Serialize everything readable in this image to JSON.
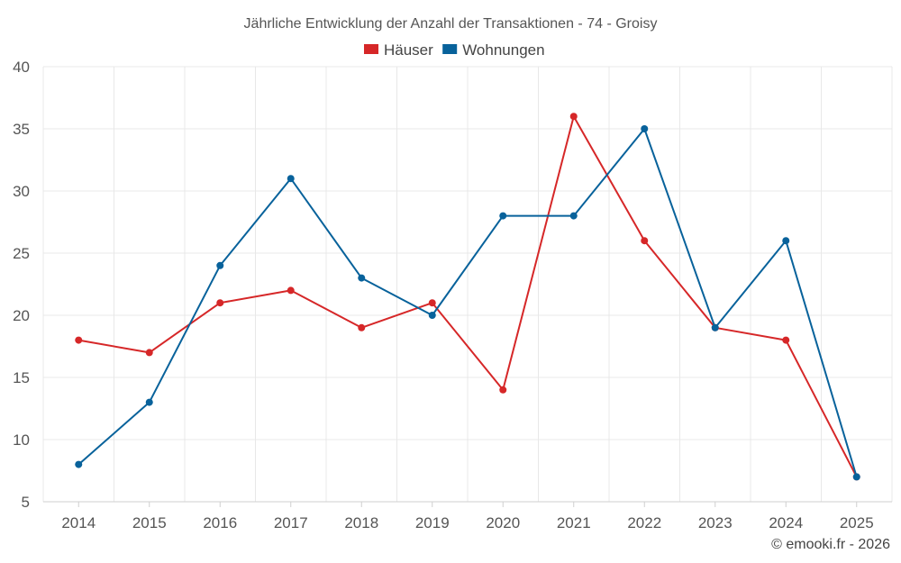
{
  "chart_data": {
    "type": "line",
    "title": "Jährliche Entwicklung der Anzahl der Transaktionen - 74 - Groisy",
    "categories": [
      "2014",
      "2015",
      "2016",
      "2017",
      "2018",
      "2019",
      "2020",
      "2021",
      "2022",
      "2023",
      "2024",
      "2025"
    ],
    "series": [
      {
        "name": "Häuser",
        "color": "#d62728",
        "values": [
          18,
          17,
          21,
          22,
          19,
          21,
          14,
          36,
          26,
          19,
          18,
          7
        ]
      },
      {
        "name": "Wohnungen",
        "color": "#08629b",
        "values": [
          8,
          13,
          24,
          31,
          23,
          20,
          28,
          28,
          35,
          19,
          26,
          7
        ]
      }
    ],
    "ylim": [
      5,
      40
    ],
    "yticks": [
      5,
      10,
      15,
      20,
      25,
      30,
      35,
      40
    ],
    "xlabel": "",
    "ylabel": "",
    "grid": true,
    "legend_position": "top-center"
  },
  "footer": "© emooki.fr - 2026"
}
